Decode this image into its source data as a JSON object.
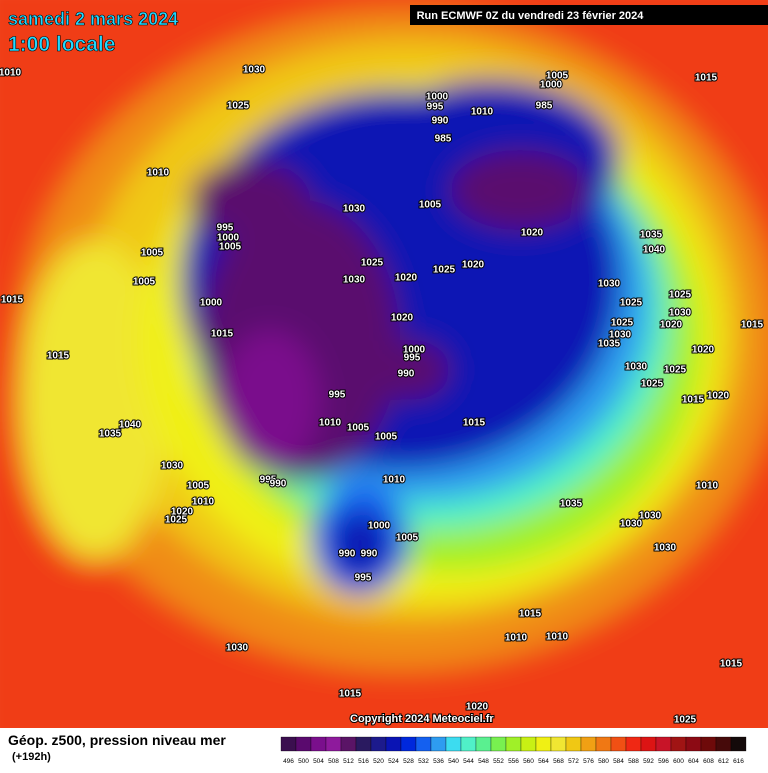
{
  "header": {
    "title": "samedi 2 mars 2024",
    "subtitle": "1:00 locale",
    "run": "Run ECMWF 0Z du vendredi 23 février 2024"
  },
  "footer": {
    "caption": "Géop. z500, pression niveau mer",
    "lead": "(+192h)",
    "copyright": "Copyright 2024 Meteociel.fr"
  },
  "legend": {
    "values": [
      496,
      500,
      504,
      508,
      512,
      516,
      520,
      524,
      528,
      532,
      536,
      540,
      544,
      548,
      552,
      556,
      560,
      564,
      568,
      572,
      576,
      580,
      584,
      588,
      592,
      596,
      600,
      604,
      608,
      612,
      616
    ],
    "colors": [
      "#3b0f4f",
      "#5a0a6e",
      "#7a0f8c",
      "#8e1a9c",
      "#5a1466",
      "#2a1a60",
      "#1c1a8c",
      "#0a14b4",
      "#0028dc",
      "#1460f0",
      "#2e9cf0",
      "#3cdcf0",
      "#50f0c8",
      "#5af090",
      "#78f050",
      "#a0f028",
      "#c8f014",
      "#f0f014",
      "#f0e632",
      "#f0c814",
      "#f0a014",
      "#f07814",
      "#f05014",
      "#f02814",
      "#dc1414",
      "#c81428",
      "#a01414",
      "#8c0a14",
      "#6e0a0a",
      "#460a0a",
      "#140a0a"
    ]
  },
  "pressure_labels": [
    1010,
    1030,
    1025,
    1010,
    995,
    1000,
    1005,
    1005,
    1005,
    1000,
    1015,
    1015,
    1015,
    1040,
    1035,
    1030,
    1005,
    1010,
    1020,
    1025,
    995,
    990,
    1030,
    1025,
    1030,
    1020,
    1020,
    1000,
    995,
    990,
    995,
    1010,
    1005,
    1005,
    1015,
    1010,
    1000,
    1005,
    990,
    990,
    995,
    1005,
    1000,
    1000,
    995,
    990,
    985,
    1010,
    985,
    1005,
    1025,
    1020,
    1020,
    1035,
    1040,
    1030,
    1025,
    1025,
    1030,
    1020,
    1015,
    1025,
    1030,
    1035,
    1030,
    1025,
    1025,
    1020,
    1020,
    1015,
    1010,
    1035,
    1030,
    1030,
    1030,
    1015,
    1015,
    1010,
    1010,
    1030,
    1015,
    1015,
    1020,
    1025
  ]
}
